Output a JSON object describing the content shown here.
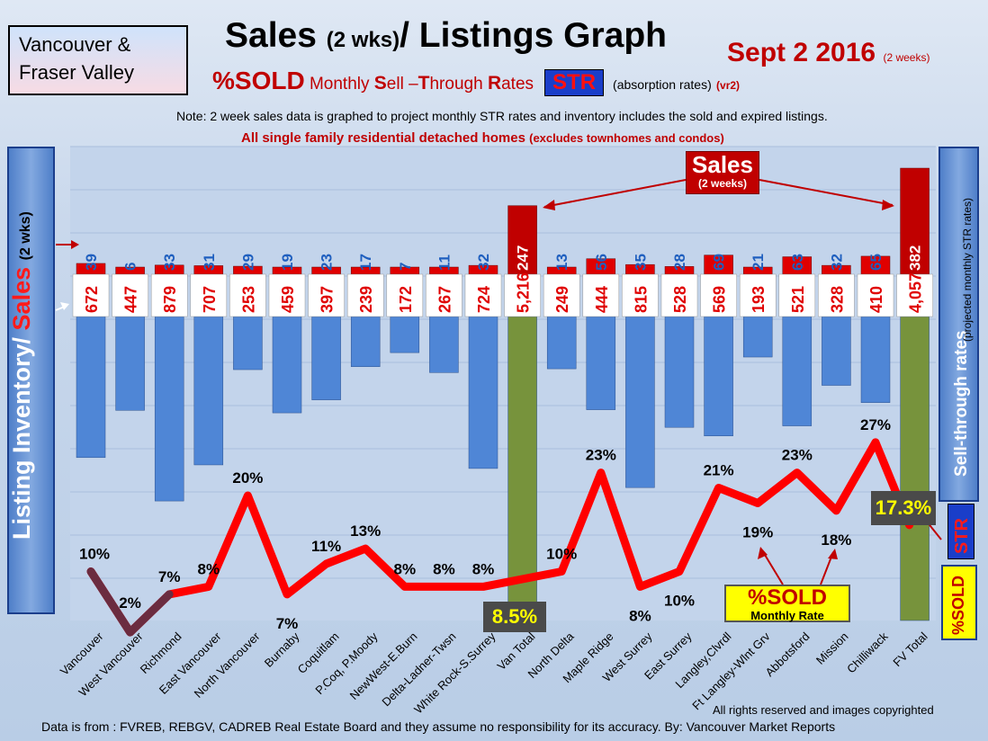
{
  "region": [
    "Vancouver &",
    "Fraser Valley"
  ],
  "title": {
    "main": "Sales",
    "paren": "(2 wks)",
    "rest": "/ Listings Graph"
  },
  "date": {
    "main": "Sept 2 2016",
    "small": "(2 weeks)"
  },
  "subtitle": {
    "pct": "%SOLD",
    "monthly": "Monthly",
    "s": "S",
    "ell": "ell –",
    "t": "T",
    "hrough": "hrough",
    "r": "R",
    "ates": "ates",
    "str": "STR",
    "absorption": "(absorption rates)",
    "vr": "(vr2)"
  },
  "note": "Note: 2 week sales data is graphed to project monthly STR rates and inventory includes the sold and expired listings.",
  "note2": {
    "main": "All single family residential detached homes",
    "paren": "(excludes townhomes and condos)"
  },
  "left_axis": {
    "inventory": "Listing Inventory/",
    "sales": "Sales",
    "small": "(2 wks)"
  },
  "right_axis": {
    "main": "Sell-through rates",
    "small": "(projected monthly STR rates)",
    "str": "STR",
    "sold": "%SOLD"
  },
  "sales_callout": {
    "main": "Sales",
    "sub": "(2 weeks)"
  },
  "sold_legend": {
    "main": "%SOLD",
    "sub": "Monthly Rate"
  },
  "van_total_str": "8.5%",
  "fv_total_str": "17.3%",
  "copyright": "All rights reserved and  images copyrighted",
  "source": "Data is from : FVREB, REBGV, CADREB Real Estate Board and they assume no responsibility  for its accuracy. By: Vancouver Market Reports",
  "colors": {
    "sales": "#e00000",
    "inventory": "#4f86d6",
    "total": "#77933c",
    "line": "#ff0000",
    "line_dark": "#6b2c40"
  },
  "chart_data": {
    "type": "bar",
    "categories": [
      "Vancouver",
      "West Vancouver",
      "Richmond",
      "East Vancouver",
      "North Vancouver",
      "Burnaby",
      "Coquitlam",
      "P.Coq, P.Moody",
      "NewWest-E.Burn",
      "Delta-Ladner-Twsn",
      "White Rock-S.Surrey",
      "Van Total",
      "North Delta",
      "Maple Ridge",
      "West Surrey",
      "East Surrey",
      "Langley,Clvrdl",
      "Ft Langley-Wlnt Grv",
      "Abbotsford",
      "Mission",
      "Chilliwack",
      "FV Total"
    ],
    "series": [
      {
        "name": "Sales",
        "values": [
          39,
          6,
          33,
          31,
          29,
          19,
          23,
          17,
          7,
          11,
          32,
          247,
          13,
          56,
          35,
          28,
          69,
          21,
          63,
          32,
          65,
          382
        ],
        "labels": [
          "39",
          "6",
          "33",
          "31",
          "29",
          "19",
          "23",
          "17",
          "7",
          "11",
          "32",
          "247",
          "13",
          "56",
          "35",
          "28",
          "69",
          "21",
          "63",
          "32",
          "65",
          "382"
        ]
      },
      {
        "name": "Listing Inventory",
        "values": [
          672,
          447,
          879,
          707,
          253,
          459,
          397,
          239,
          172,
          267,
          724,
          5216,
          249,
          444,
          815,
          528,
          569,
          193,
          521,
          328,
          410,
          4057
        ],
        "labels": [
          "672",
          "447",
          "879",
          "707",
          "253",
          "459",
          "397",
          "239",
          "172",
          "267",
          "724",
          "5,216",
          "249",
          "444",
          "815",
          "528",
          "569",
          "193",
          "521",
          "328",
          "410",
          "4,057"
        ]
      },
      {
        "name": "%SOLD",
        "values": [
          10,
          2,
          7,
          8,
          20,
          7,
          11,
          13,
          8,
          8,
          8,
          8.5,
          10,
          23,
          8,
          10,
          21,
          19,
          23,
          18,
          27,
          17.3
        ],
        "labels": [
          "10%",
          "2%",
          "7%",
          "8%",
          "20%",
          "7%",
          "11%",
          "13%",
          "8%",
          "8%",
          "8%",
          "",
          "10%",
          "23%",
          "8%",
          "10%",
          "21%",
          "19%",
          "23%",
          "18%",
          "27%",
          ""
        ]
      }
    ]
  }
}
